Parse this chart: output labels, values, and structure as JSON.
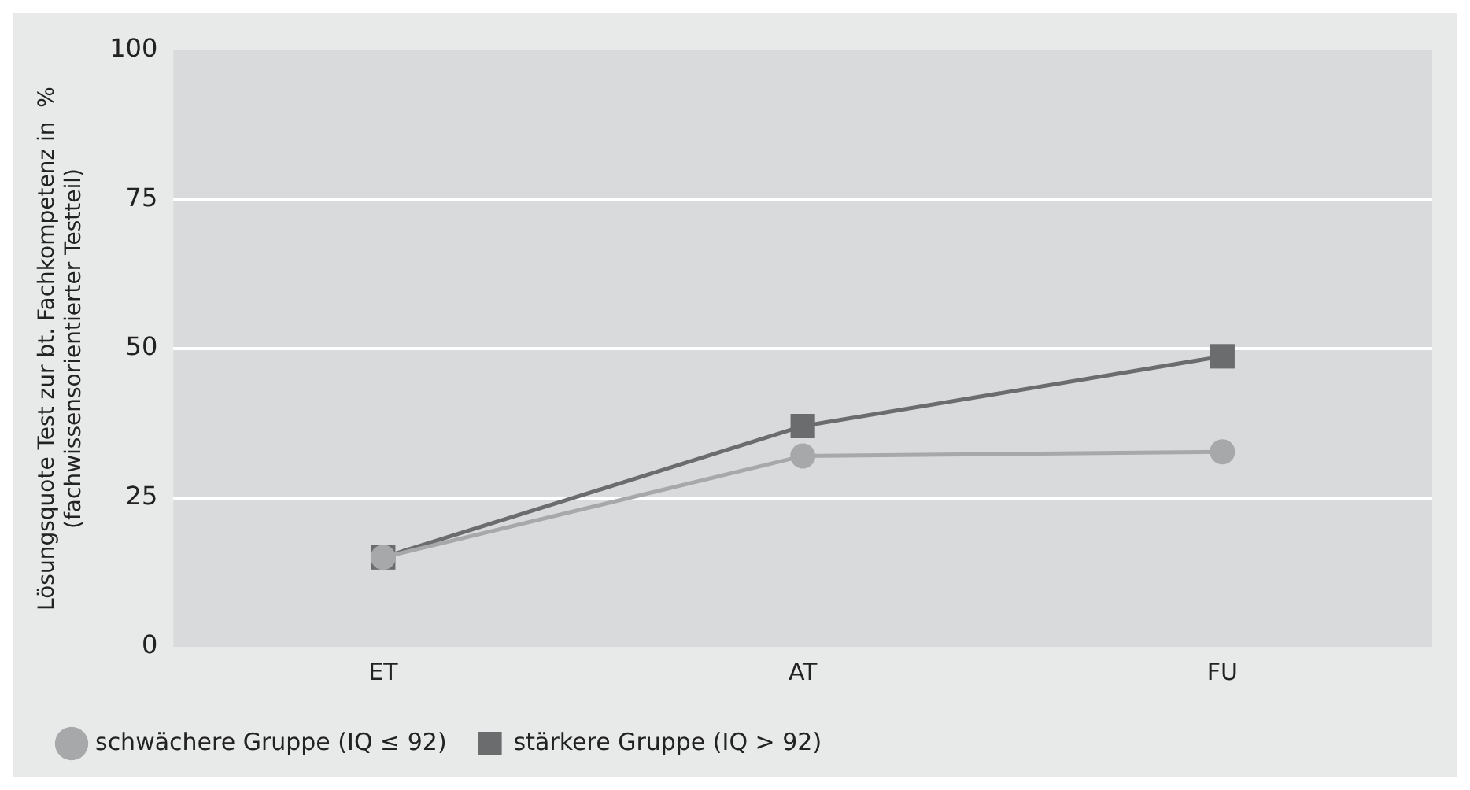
{
  "chart_data": {
    "type": "line",
    "ylabel": "Lösungsquote Test zur bt. Fachkompetenz in  %\n(fachwissensorientierter Testteil)",
    "categories": [
      "ET",
      "AT",
      "FU"
    ],
    "series": [
      {
        "name": "schwächere Gruppe (IQ ≤ 92)",
        "color": "#a7a8aa",
        "values": [
          15,
          32,
          32.7
        ],
        "marker": "circle"
      },
      {
        "name": "stärkere Gruppe (IQ > 92)",
        "color": "#6b6c6e",
        "values": [
          15,
          37,
          48.7
        ],
        "marker": "square"
      }
    ],
    "ylim": [
      0,
      100
    ],
    "yticks": [
      0,
      25,
      50,
      75,
      100
    ],
    "grid": "y",
    "legend": "bottom left"
  }
}
